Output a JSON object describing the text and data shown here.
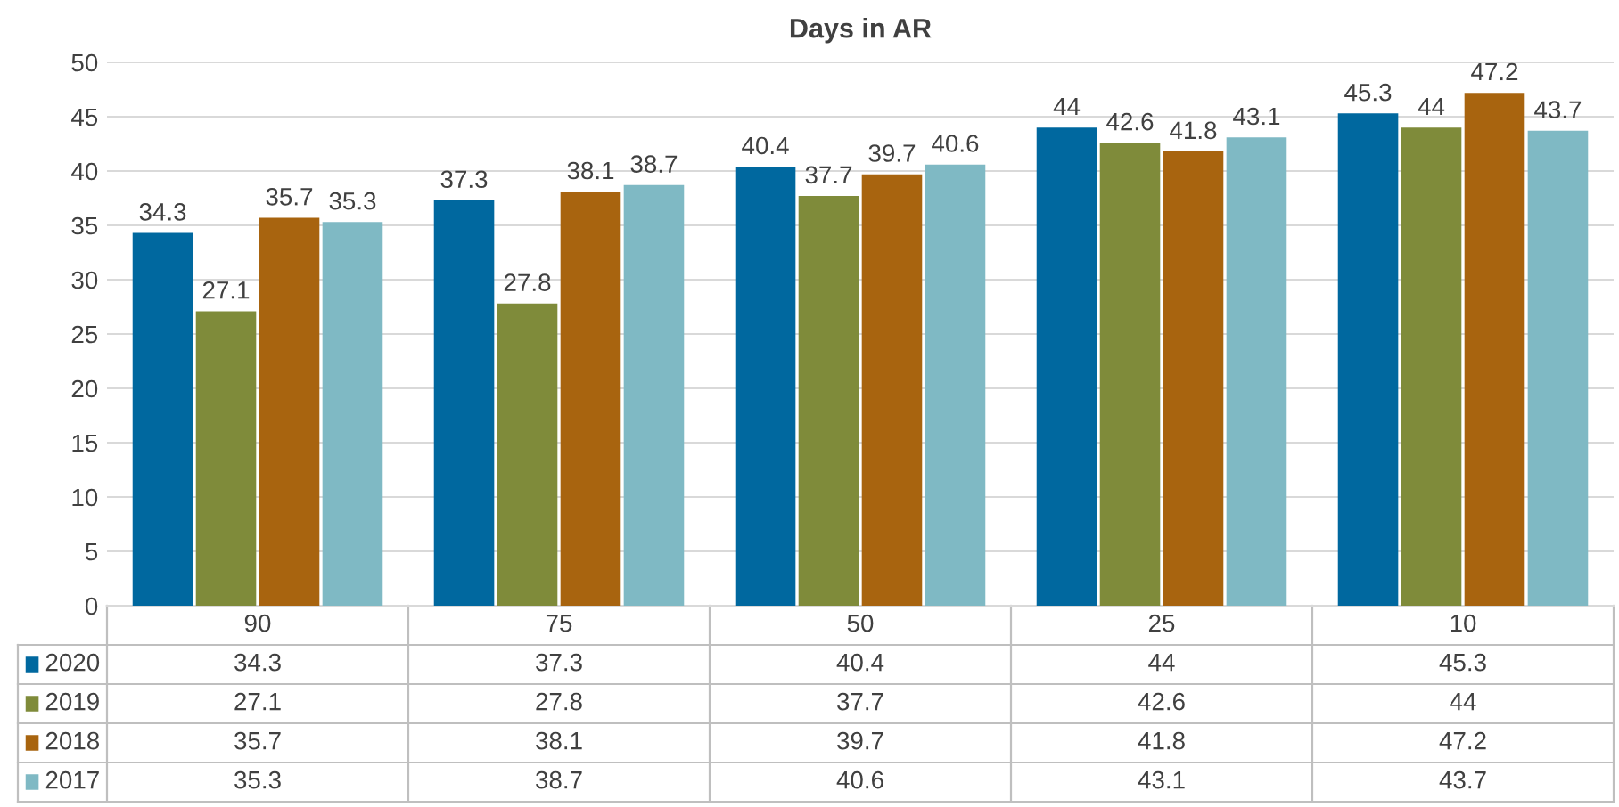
{
  "chart_data": {
    "type": "bar",
    "title": "Days in AR",
    "categories": [
      "90",
      "75",
      "50",
      "25",
      "10"
    ],
    "series": [
      {
        "name": "2020",
        "color": "#00689f",
        "values": [
          34.3,
          37.3,
          40.4,
          44,
          45.3
        ],
        "value_labels": [
          "34.3",
          "37.3",
          "40.4",
          "44",
          "45.3"
        ]
      },
      {
        "name": "2019",
        "color": "#7f8b3a",
        "values": [
          27.1,
          27.8,
          37.7,
          42.6,
          44
        ],
        "value_labels": [
          "27.1",
          "27.8",
          "37.7",
          "42.6",
          "44"
        ]
      },
      {
        "name": "2018",
        "color": "#a8640f",
        "values": [
          35.7,
          38.1,
          39.7,
          41.8,
          47.2
        ],
        "value_labels": [
          "35.7",
          "38.1",
          "39.7",
          "41.8",
          "47.2"
        ]
      },
      {
        "name": "2017",
        "color": "#7fb9c4",
        "values": [
          35.3,
          38.7,
          40.6,
          43.1,
          43.7
        ],
        "value_labels": [
          "35.3",
          "38.7",
          "40.6",
          "43.1",
          "43.7"
        ]
      }
    ],
    "annotations": [
      "34.3",
      "37.3",
      "40.4",
      "44",
      "45.3",
      "27.1",
      "27.8",
      "37.7",
      "42.6",
      "44",
      "35.7",
      "38.1",
      "39.7",
      "41.8",
      "47.2",
      "35.3",
      "38.7",
      "40.6",
      "43.1",
      "43.7"
    ],
    "ylim": [
      0,
      50
    ],
    "yticks": [
      0,
      5,
      10,
      15,
      20,
      25,
      30,
      35,
      40,
      45,
      50
    ],
    "grid": "y",
    "legend": "bottom"
  }
}
